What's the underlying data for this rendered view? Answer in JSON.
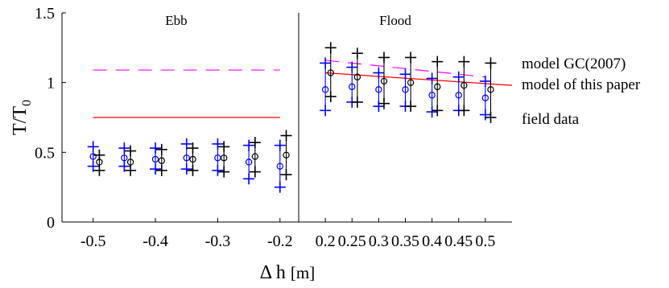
{
  "chart_data": {
    "type": "scatter",
    "ylabel": {
      "main": "T/T",
      "sub": "0"
    },
    "xlabel": {
      "main": "Δ h",
      "unit": "[m]"
    },
    "ylim": [
      0,
      1.5
    ],
    "yticks": [
      "0",
      "0.5",
      "1",
      "1.5"
    ],
    "grid": false,
    "panels": [
      {
        "title": "Ebb",
        "xlim": [
          -0.55,
          -0.17
        ],
        "xticks": [
          "-0.5",
          "-0.4",
          "-0.3",
          "-0.2"
        ],
        "series": {
          "model_gc2007": {
            "x": [
              -0.5,
              -0.2
            ],
            "y": [
              1.09,
              1.09
            ]
          },
          "model_this_paper": {
            "x": [
              -0.5,
              -0.2
            ],
            "y": [
              0.75,
              0.75
            ]
          },
          "field_data": {
            "x": [
              -0.5,
              -0.45,
              -0.4,
              -0.35,
              -0.3,
              -0.25,
              -0.2
            ],
            "mean": [
              0.47,
              0.46,
              0.45,
              0.46,
              0.46,
              0.43,
              0.4
            ],
            "upper": [
              0.54,
              0.53,
              0.53,
              0.56,
              0.56,
              0.55,
              0.55
            ],
            "lower": [
              0.4,
              0.4,
              0.38,
              0.38,
              0.37,
              0.31,
              0.25
            ]
          },
          "field_data_black": {
            "x": [
              -0.49,
              -0.44,
              -0.39,
              -0.34,
              -0.29,
              -0.24,
              -0.19
            ],
            "mean": [
              0.43,
              0.43,
              0.44,
              0.45,
              0.46,
              0.47,
              0.48
            ],
            "upper": [
              0.48,
              0.51,
              0.52,
              0.53,
              0.54,
              0.57,
              0.62
            ],
            "lower": [
              0.37,
              0.37,
              0.37,
              0.37,
              0.36,
              0.36,
              0.34
            ]
          }
        }
      },
      {
        "title": "Flood",
        "xlim": [
          0.15,
          0.55
        ],
        "xticks": [
          "0.2",
          "0.25",
          "0.3",
          "0.35",
          "0.4",
          "0.45",
          "0.5"
        ],
        "series": {
          "model_gc2007": {
            "x": [
              0.2,
              0.5
            ],
            "y": [
              1.16,
              1.04
            ]
          },
          "model_this_paper": {
            "x": [
              0.2,
              0.55
            ],
            "y": [
              1.07,
              0.98
            ]
          },
          "field_data": {
            "x": [
              0.2,
              0.25,
              0.3,
              0.35,
              0.4,
              0.45,
              0.5
            ],
            "mean": [
              0.95,
              0.97,
              0.95,
              0.95,
              0.91,
              0.91,
              0.89
            ],
            "upper": [
              1.14,
              1.11,
              1.07,
              1.06,
              1.03,
              1.04,
              1.01
            ],
            "lower": [
              0.8,
              0.86,
              0.83,
              0.83,
              0.79,
              0.8,
              0.77
            ]
          },
          "field_data_black": {
            "x": [
              0.21,
              0.26,
              0.31,
              0.36,
              0.41,
              0.46,
              0.51
            ],
            "mean": [
              1.07,
              1.04,
              1.01,
              1.0,
              0.97,
              0.98,
              0.95
            ],
            "upper": [
              1.25,
              1.21,
              1.18,
              1.18,
              1.15,
              1.15,
              1.14
            ],
            "lower": [
              0.9,
              0.86,
              0.85,
              0.83,
              0.8,
              0.8,
              0.75
            ]
          }
        }
      }
    ],
    "legend": {
      "placement": "right",
      "entries": [
        {
          "label": "model GC(2007)",
          "color": "#ff00ff"
        },
        {
          "label": "model of this paper",
          "color": "#ff0000"
        },
        {
          "label": "field data",
          "color": "#0000ff"
        }
      ]
    },
    "colors": {
      "model_gc2007": "#ff00ff",
      "model_this_paper": "#ff0000",
      "field_data": "#0000ff",
      "field_data_black": "#000000",
      "axes": "#000000"
    }
  }
}
